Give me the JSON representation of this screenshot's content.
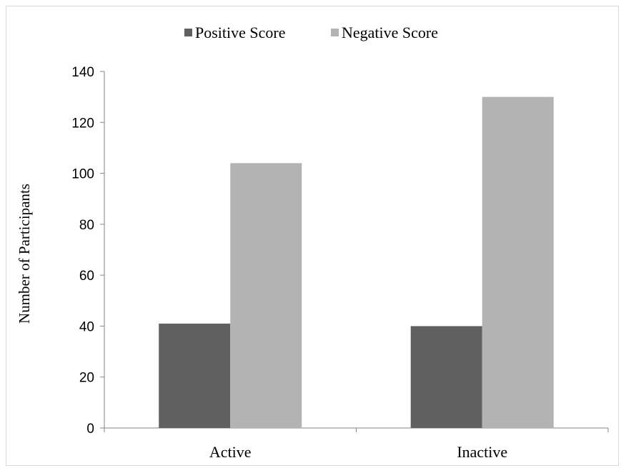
{
  "chart_data": {
    "type": "bar",
    "title": "",
    "xlabel": "",
    "ylabel": "Number of Participants",
    "categories": [
      "Active",
      "Inactive"
    ],
    "series": [
      {
        "name": "Positive Score",
        "values": [
          41,
          40
        ],
        "color": "#606060"
      },
      {
        "name": "Negative Score",
        "values": [
          104,
          130
        ],
        "color": "#b3b3b3"
      }
    ],
    "ylim": [
      0,
      140
    ],
    "yticks": [
      "0",
      "20",
      "40",
      "60",
      "80",
      "100",
      "120",
      "140"
    ],
    "grid": false,
    "legend_position": "top"
  }
}
